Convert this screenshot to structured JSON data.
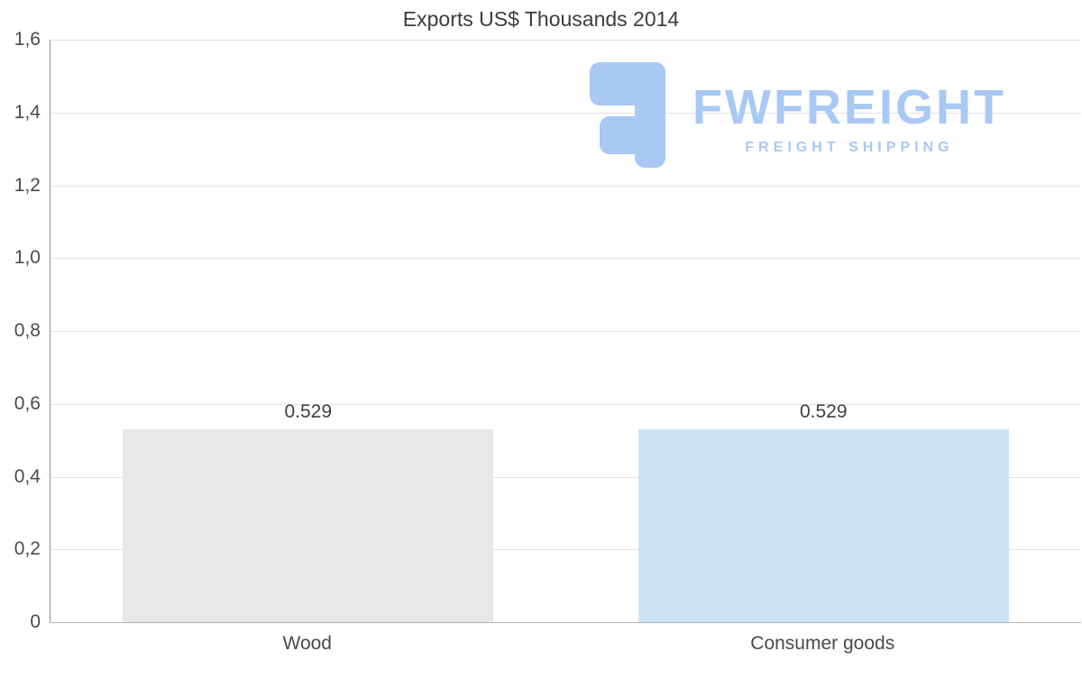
{
  "title": "Exports US$ Thousands 2014",
  "logo": {
    "name": "FWFREIGHT",
    "tagline": "FREIGHT SHIPPING",
    "color": "#a7c9f3"
  },
  "chart_data": {
    "type": "bar",
    "title": "Exports US$ Thousands 2014",
    "categories": [
      "Wood",
      "Consumer goods"
    ],
    "values": [
      0.529,
      0.529
    ],
    "value_labels": [
      "0.529",
      "0.529"
    ],
    "bar_colors": [
      "#e8e8e8",
      "#cee3f8"
    ],
    "xlabel": "",
    "ylabel": "",
    "ylim": [
      0,
      1.6
    ],
    "ytick_step": 0.2,
    "ytick_labels": [
      "0",
      "0,2",
      "0,4",
      "0,6",
      "0,8",
      "1,0",
      "1,2",
      "1,4",
      "1,6"
    ],
    "grid": true,
    "legend": false,
    "axis_color": "#8f8f8f",
    "gridline_color": "#e1e1e1"
  }
}
